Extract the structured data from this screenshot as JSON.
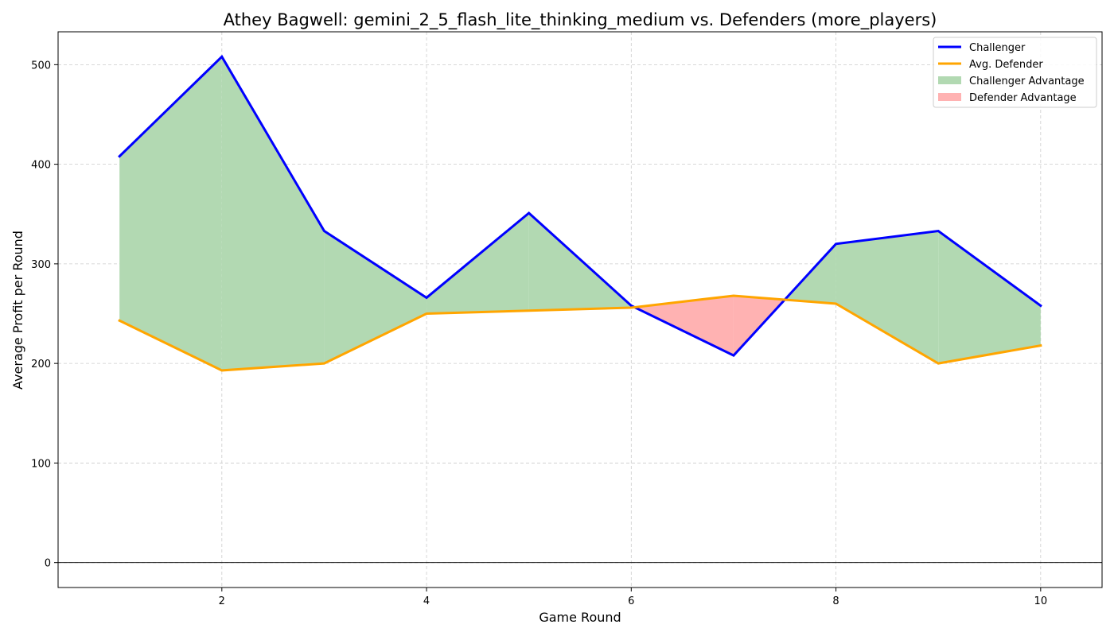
{
  "chart_data": {
    "type": "line",
    "title": "Athey Bagwell: gemini_2_5_flash_lite_thinking_medium vs. Defenders (more_players)",
    "xlabel": "Game Round",
    "ylabel": "Average Profit per Round",
    "x": [
      1,
      2,
      3,
      4,
      5,
      6,
      7,
      8,
      9,
      10
    ],
    "xlim": [
      0.4,
      10.6
    ],
    "ylim": [
      -25,
      533
    ],
    "xticks": [
      2,
      4,
      6,
      8,
      10
    ],
    "yticks": [
      0,
      100,
      200,
      300,
      400,
      500
    ],
    "grid": true,
    "legend_position": "top-right",
    "series": [
      {
        "name": "Challenger",
        "color": "#0000ff",
        "values": [
          408,
          508,
          333,
          266,
          351,
          258,
          208,
          320,
          333,
          258
        ]
      },
      {
        "name": "Avg. Defender",
        "color": "#ffa500",
        "values": [
          243,
          193,
          200,
          250,
          253,
          256,
          268,
          260,
          200,
          218
        ]
      }
    ],
    "fills": [
      {
        "name": "Challenger Advantage",
        "color": "#b2d9b2"
      },
      {
        "name": "Defender Advantage",
        "color": "#ffb2b2"
      }
    ]
  }
}
